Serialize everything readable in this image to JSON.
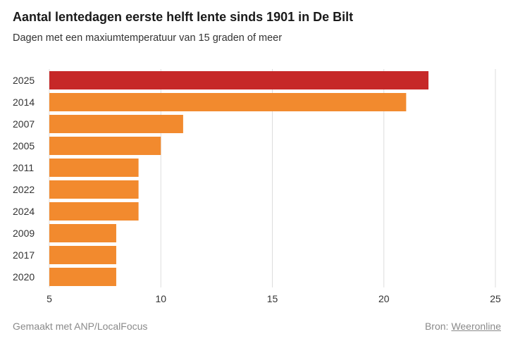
{
  "title": "Aantal lentedagen eerste helft lente sinds 1901 in De Bilt",
  "subtitle": "Dagen met een maxiumtemperatuur van 15 graden of meer",
  "footer": {
    "made_with": "Gemaakt met ANP/LocalFocus",
    "source_label": "Bron:",
    "source_link": "Weeronline"
  },
  "colors": {
    "highlight": "#c62828",
    "bar": "#f28a2e",
    "grid": "#dddddd",
    "text": "#333333"
  },
  "chart_data": {
    "type": "bar",
    "orientation": "horizontal",
    "title": "Aantal lentedagen eerste helft lente sinds 1901 in De Bilt",
    "subtitle": "Dagen met een maxiumtemperatuur van 15 graden of meer",
    "categories": [
      "2025",
      "2014",
      "2007",
      "2005",
      "2011",
      "2022",
      "2024",
      "2009",
      "2017",
      "2020"
    ],
    "values": [
      22,
      21,
      11,
      10,
      9,
      9,
      9,
      8,
      8,
      8
    ],
    "highlight_category": "2025",
    "xlim": [
      5,
      25
    ],
    "xticks": [
      5,
      10,
      15,
      20,
      25
    ],
    "grid": true
  }
}
